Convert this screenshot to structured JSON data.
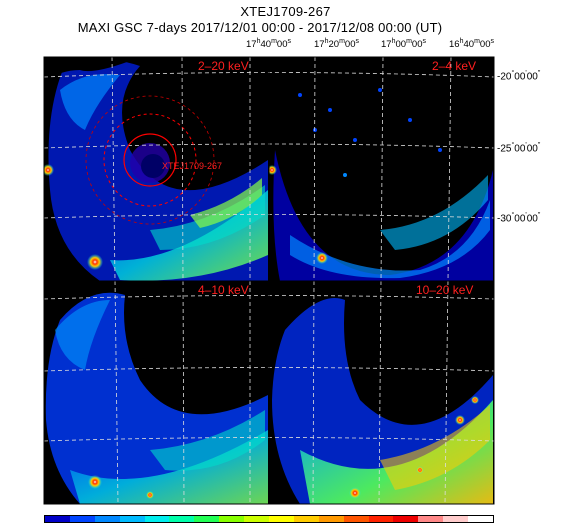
{
  "header": {
    "source_name": "XTEJ1709-267",
    "observation": "MAXI GSC 7-days 2017/12/01 00:00 - 2017/12/08 00:00 (UT)"
  },
  "ra_axis_labels": [
    {
      "h": "17",
      "m": "40",
      "s": "00"
    },
    {
      "h": "17",
      "m": "20",
      "s": "00"
    },
    {
      "h": "17",
      "m": "00",
      "s": "00"
    },
    {
      "h": "16",
      "m": "40",
      "s": "00"
    }
  ],
  "dec_axis_labels": [
    {
      "deg": "-20",
      "min": "00",
      "sec": "00"
    },
    {
      "deg": "-25",
      "min": "00",
      "sec": "00"
    },
    {
      "deg": "-30",
      "min": "00",
      "sec": "00"
    }
  ],
  "panels": [
    {
      "id": "2-20",
      "energy_label": "2–20 keV"
    },
    {
      "id": "2-4",
      "energy_label": "2–4 keV"
    },
    {
      "id": "4-10",
      "energy_label": "4–10 keV"
    },
    {
      "id": "10-20",
      "energy_label": "10–20 keV"
    }
  ],
  "source_marker_label": "XTEJ1709-267",
  "colorbar": {
    "colors": [
      "#0000c8",
      "#0044ff",
      "#0088ff",
      "#00bbff",
      "#00eeee",
      "#00ffaa",
      "#22ff55",
      "#88ff00",
      "#ccff00",
      "#ffff00",
      "#ffcc00",
      "#ff9900",
      "#ff5500",
      "#ff2200",
      "#ee0000",
      "#ff8888",
      "#ffcccc",
      "#ffffff"
    ]
  },
  "colors": {
    "background": "#000000",
    "label_red": "#ff2020",
    "marker_red": "#ff0000",
    "grid": "#dddddd"
  }
}
